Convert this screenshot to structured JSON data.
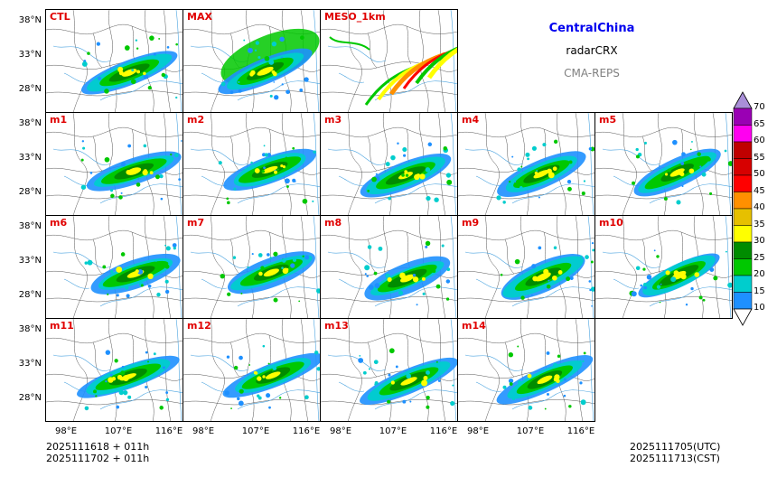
{
  "header": {
    "region": "CentralChina",
    "product": "radarCRX",
    "system": "CMA-REPS"
  },
  "panels": [
    {
      "label": "CTL"
    },
    {
      "label": "MAX"
    },
    {
      "label": "MESO_1km"
    },
    {
      "label": "m1"
    },
    {
      "label": "m2"
    },
    {
      "label": "m3"
    },
    {
      "label": "m4"
    },
    {
      "label": "m5"
    },
    {
      "label": "m6"
    },
    {
      "label": "m7"
    },
    {
      "label": "m8"
    },
    {
      "label": "m9"
    },
    {
      "label": "m10"
    },
    {
      "label": "m11"
    },
    {
      "label": "m12"
    },
    {
      "label": "m13"
    },
    {
      "label": "m14"
    }
  ],
  "axes": {
    "lat_ticks": [
      "38°N",
      "33°N",
      "28°N"
    ],
    "lon_ticks": [
      "98°E",
      "107°E",
      "116°E"
    ]
  },
  "colorbar": {
    "levels": [
      "10",
      "15",
      "20",
      "25",
      "30",
      "35",
      "40",
      "45",
      "50",
      "55",
      "60",
      "65",
      "70"
    ],
    "colors": [
      "#1e90ff",
      "#00cdcd",
      "#00c800",
      "#008c00",
      "#ffff00",
      "#e6c000",
      "#ff9000",
      "#ff0000",
      "#d70000",
      "#c00000",
      "#ff00f0",
      "#9a00b4",
      "#a98fd8"
    ]
  },
  "footer": {
    "init_line1": "2025111618  +  011h",
    "init_line2": "2025111702  +  011h",
    "valid_utc": "2025111705(UTC)",
    "valid_cst": "2025111713(CST)"
  }
}
